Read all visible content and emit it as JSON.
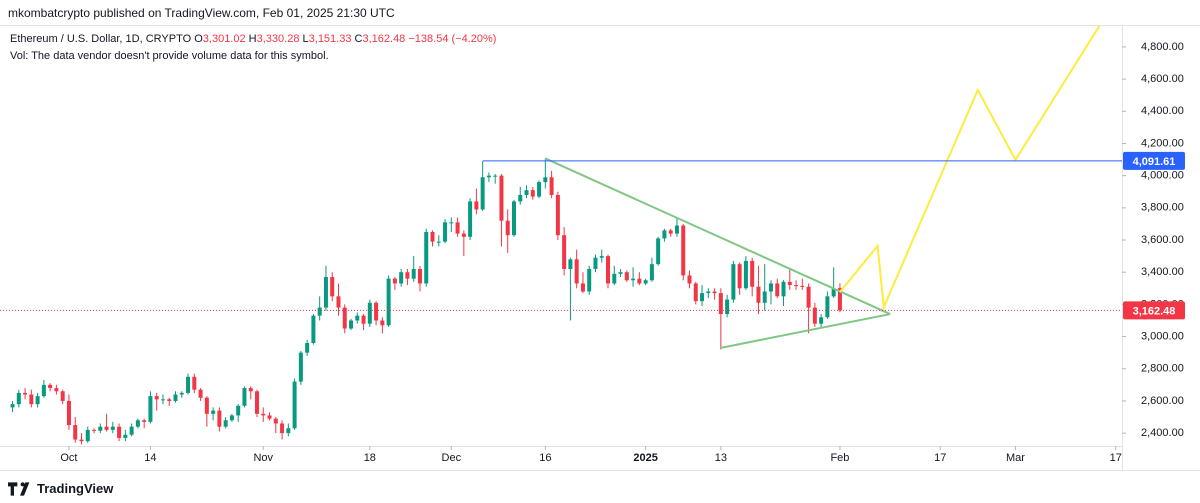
{
  "header": {
    "published": "mkombatcrypto published on TradingView.com, Feb 01, 2025 21:30 UTC"
  },
  "footer": {
    "brand": "TradingView"
  },
  "chart_data": {
    "type": "candlestick",
    "legend": {
      "symbol": "Ethereum / U.S. Dollar, 1D, CRYPTO",
      "ohlc": [
        {
          "key": "O",
          "value": "3,301.02"
        },
        {
          "key": "H",
          "value": "3,330.28"
        },
        {
          "key": "L",
          "value": "3,151.33"
        },
        {
          "key": "C",
          "value": "3,162.48"
        }
      ],
      "change": "−138.54 (−4.20%)"
    },
    "note": "Vol: The data vendor doesn't provide volume data for this symbol.",
    "up_color": "#089981",
    "down_color": "#f23645",
    "xlim": [
      "2024-09-20",
      "2025-03-18"
    ],
    "xticks": [
      {
        "value": "2024-10-01",
        "label": "Oct"
      },
      {
        "value": "2024-10-14",
        "label": "14"
      },
      {
        "value": "2024-11-01",
        "label": "Nov"
      },
      {
        "value": "2024-11-18",
        "label": "18"
      },
      {
        "value": "2024-12-01",
        "label": "Dec"
      },
      {
        "value": "2024-12-16",
        "label": "16"
      },
      {
        "value": "2025-01-01",
        "label": "2025"
      },
      {
        "value": "2025-01-13",
        "label": "13"
      },
      {
        "value": "2025-02-01",
        "label": "Feb"
      },
      {
        "value": "2025-02-17",
        "label": "17"
      },
      {
        "value": "2025-03-01",
        "label": "Mar"
      },
      {
        "value": "2025-03-17",
        "label": "17"
      }
    ],
    "ylim": [
      2320,
      4930
    ],
    "yticks": [
      {
        "value": 2400,
        "label": "2,400.00"
      },
      {
        "value": 2600,
        "label": "2,600.00"
      },
      {
        "value": 2800,
        "label": "2,800.00"
      },
      {
        "value": 3000,
        "label": "3,000.00"
      },
      {
        "value": 3200,
        "label": "3,200.00"
      },
      {
        "value": 3400,
        "label": "3,400.00"
      },
      {
        "value": 3600,
        "label": "3,600.00"
      },
      {
        "value": 3800,
        "label": "3,800.00"
      },
      {
        "value": 4000,
        "label": "4,000.00"
      },
      {
        "value": 4200,
        "label": "4,200.00"
      },
      {
        "value": 4400,
        "label": "4,400.00"
      },
      {
        "value": 4600,
        "label": "4,600.00"
      },
      {
        "value": 4800,
        "label": "4,800.00"
      }
    ],
    "grid": false,
    "x": [
      "2024-09-22",
      "2024-09-23",
      "2024-09-24",
      "2024-09-25",
      "2024-09-26",
      "2024-09-27",
      "2024-09-28",
      "2024-09-29",
      "2024-09-30",
      "2024-10-01",
      "2024-10-02",
      "2024-10-03",
      "2024-10-04",
      "2024-10-05",
      "2024-10-06",
      "2024-10-07",
      "2024-10-08",
      "2024-10-09",
      "2024-10-10",
      "2024-10-11",
      "2024-10-12",
      "2024-10-13",
      "2024-10-14",
      "2024-10-15",
      "2024-10-16",
      "2024-10-17",
      "2024-10-18",
      "2024-10-19",
      "2024-10-20",
      "2024-10-21",
      "2024-10-22",
      "2024-10-23",
      "2024-10-24",
      "2024-10-25",
      "2024-10-26",
      "2024-10-27",
      "2024-10-28",
      "2024-10-29",
      "2024-10-30",
      "2024-10-31",
      "2024-11-01",
      "2024-11-02",
      "2024-11-03",
      "2024-11-04",
      "2024-11-05",
      "2024-11-06",
      "2024-11-07",
      "2024-11-08",
      "2024-11-09",
      "2024-11-10",
      "2024-11-11",
      "2024-11-12",
      "2024-11-13",
      "2024-11-14",
      "2024-11-15",
      "2024-11-16",
      "2024-11-17",
      "2024-11-18",
      "2024-11-19",
      "2024-11-20",
      "2024-11-21",
      "2024-11-22",
      "2024-11-23",
      "2024-11-24",
      "2024-11-25",
      "2024-11-26",
      "2024-11-27",
      "2024-11-28",
      "2024-11-29",
      "2024-11-30",
      "2024-12-01",
      "2024-12-02",
      "2024-12-03",
      "2024-12-04",
      "2024-12-05",
      "2024-12-06",
      "2024-12-07",
      "2024-12-08",
      "2024-12-09",
      "2024-12-10",
      "2024-12-11",
      "2024-12-12",
      "2024-12-13",
      "2024-12-14",
      "2024-12-15",
      "2024-12-16",
      "2024-12-17",
      "2024-12-18",
      "2024-12-19",
      "2024-12-20",
      "2024-12-21",
      "2024-12-22",
      "2024-12-23",
      "2024-12-24",
      "2024-12-25",
      "2024-12-26",
      "2024-12-27",
      "2024-12-28",
      "2024-12-29",
      "2024-12-30",
      "2024-12-31",
      "2025-01-01",
      "2025-01-02",
      "2025-01-03",
      "2025-01-04",
      "2025-01-05",
      "2025-01-06",
      "2025-01-07",
      "2025-01-08",
      "2025-01-09",
      "2025-01-10",
      "2025-01-11",
      "2025-01-12",
      "2025-01-13",
      "2025-01-14",
      "2025-01-15",
      "2025-01-16",
      "2025-01-17",
      "2025-01-18",
      "2025-01-19",
      "2025-01-20",
      "2025-01-21",
      "2025-01-22",
      "2025-01-23",
      "2025-01-24",
      "2025-01-25",
      "2025-01-26",
      "2025-01-27",
      "2025-01-28",
      "2025-01-29",
      "2025-01-30",
      "2025-01-31",
      "2025-02-01"
    ],
    "ohlc": [
      [
        2560,
        2600,
        2530,
        2580
      ],
      [
        2580,
        2670,
        2560,
        2650
      ],
      [
        2650,
        2680,
        2610,
        2640
      ],
      [
        2640,
        2670,
        2560,
        2580
      ],
      [
        2580,
        2650,
        2560,
        2630
      ],
      [
        2630,
        2730,
        2620,
        2700
      ],
      [
        2700,
        2710,
        2660,
        2680
      ],
      [
        2680,
        2700,
        2640,
        2660
      ],
      [
        2660,
        2670,
        2580,
        2600
      ],
      [
        2600,
        2640,
        2420,
        2450
      ],
      [
        2450,
        2500,
        2340,
        2360
      ],
      [
        2360,
        2400,
        2330,
        2350
      ],
      [
        2350,
        2440,
        2340,
        2420
      ],
      [
        2420,
        2430,
        2400,
        2415
      ],
      [
        2415,
        2460,
        2400,
        2440
      ],
      [
        2440,
        2520,
        2410,
        2420
      ],
      [
        2420,
        2470,
        2400,
        2440
      ],
      [
        2440,
        2460,
        2350,
        2370
      ],
      [
        2370,
        2420,
        2350,
        2390
      ],
      [
        2390,
        2460,
        2380,
        2440
      ],
      [
        2440,
        2490,
        2430,
        2480
      ],
      [
        2480,
        2490,
        2430,
        2470
      ],
      [
        2470,
        2660,
        2460,
        2630
      ],
      [
        2630,
        2650,
        2540,
        2610
      ],
      [
        2610,
        2640,
        2580,
        2610
      ],
      [
        2610,
        2620,
        2570,
        2600
      ],
      [
        2600,
        2660,
        2590,
        2640
      ],
      [
        2640,
        2660,
        2620,
        2650
      ],
      [
        2650,
        2770,
        2640,
        2750
      ],
      [
        2750,
        2770,
        2650,
        2670
      ],
      [
        2670,
        2680,
        2600,
        2620
      ],
      [
        2620,
        2630,
        2440,
        2520
      ],
      [
        2520,
        2560,
        2480,
        2540
      ],
      [
        2540,
        2560,
        2410,
        2440
      ],
      [
        2440,
        2500,
        2430,
        2480
      ],
      [
        2480,
        2520,
        2470,
        2510
      ],
      [
        2510,
        2580,
        2470,
        2570
      ],
      [
        2570,
        2690,
        2560,
        2680
      ],
      [
        2680,
        2690,
        2610,
        2660
      ],
      [
        2660,
        2670,
        2500,
        2520
      ],
      [
        2520,
        2560,
        2470,
        2510
      ],
      [
        2510,
        2530,
        2480,
        2490
      ],
      [
        2490,
        2500,
        2400,
        2460
      ],
      [
        2460,
        2480,
        2360,
        2400
      ],
      [
        2400,
        2460,
        2380,
        2430
      ],
      [
        2430,
        2740,
        2420,
        2720
      ],
      [
        2720,
        2910,
        2700,
        2900
      ],
      [
        2900,
        2980,
        2880,
        2960
      ],
      [
        2960,
        3140,
        2950,
        3130
      ],
      [
        3130,
        3250,
        3100,
        3180
      ],
      [
        3180,
        3440,
        3160,
        3370
      ],
      [
        3370,
        3400,
        3220,
        3250
      ],
      [
        3250,
        3330,
        3130,
        3180
      ],
      [
        3180,
        3200,
        3020,
        3050
      ],
      [
        3050,
        3110,
        3040,
        3100
      ],
      [
        3100,
        3150,
        3080,
        3130
      ],
      [
        3130,
        3140,
        3040,
        3080
      ],
      [
        3080,
        3230,
        3060,
        3210
      ],
      [
        3210,
        3220,
        3070,
        3100
      ],
      [
        3100,
        3120,
        3020,
        3070
      ],
      [
        3070,
        3380,
        3060,
        3360
      ],
      [
        3360,
        3370,
        3290,
        3330
      ],
      [
        3330,
        3420,
        3310,
        3400
      ],
      [
        3400,
        3420,
        3320,
        3360
      ],
      [
        3360,
        3500,
        3340,
        3420
      ],
      [
        3420,
        3440,
        3280,
        3330
      ],
      [
        3330,
        3670,
        3310,
        3650
      ],
      [
        3650,
        3660,
        3560,
        3590
      ],
      [
        3590,
        3630,
        3560,
        3590
      ],
      [
        3590,
        3730,
        3580,
        3710
      ],
      [
        3710,
        3740,
        3650,
        3710
      ],
      [
        3710,
        3740,
        3620,
        3640
      ],
      [
        3640,
        3660,
        3500,
        3620
      ],
      [
        3620,
        3860,
        3600,
        3840
      ],
      [
        3840,
        3920,
        3760,
        3790
      ],
      [
        3790,
        4090,
        3780,
        3990
      ],
      [
        3990,
        4020,
        3960,
        4000
      ],
      [
        4000,
        4010,
        3950,
        4000
      ],
      [
        4000,
        4010,
        3560,
        3720
      ],
      [
        3720,
        3790,
        3520,
        3630
      ],
      [
        3630,
        3850,
        3620,
        3840
      ],
      [
        3840,
        3930,
        3820,
        3880
      ],
      [
        3880,
        3940,
        3860,
        3910
      ],
      [
        3910,
        3930,
        3850,
        3870
      ],
      [
        3870,
        3970,
        3860,
        3960
      ],
      [
        3960,
        4107,
        3920,
        3990
      ],
      [
        3990,
        4030,
        3860,
        3880
      ],
      [
        3880,
        3900,
        3600,
        3630
      ],
      [
        3630,
        3680,
        3380,
        3420
      ],
      [
        3420,
        3490,
        3100,
        3480
      ],
      [
        3480,
        3540,
        3300,
        3330
      ],
      [
        3330,
        3400,
        3270,
        3280
      ],
      [
        3280,
        3440,
        3260,
        3420
      ],
      [
        3420,
        3510,
        3400,
        3490
      ],
      [
        3490,
        3540,
        3460,
        3500
      ],
      [
        3500,
        3510,
        3300,
        3330
      ],
      [
        3330,
        3440,
        3320,
        3390
      ],
      [
        3390,
        3420,
        3370,
        3400
      ],
      [
        3400,
        3410,
        3340,
        3350
      ],
      [
        3350,
        3430,
        3310,
        3360
      ],
      [
        3360,
        3400,
        3320,
        3330
      ],
      [
        3330,
        3360,
        3320,
        3350
      ],
      [
        3350,
        3490,
        3340,
        3450
      ],
      [
        3450,
        3620,
        3440,
        3610
      ],
      [
        3610,
        3670,
        3590,
        3660
      ],
      [
        3660,
        3670,
        3620,
        3640
      ],
      [
        3640,
        3740,
        3620,
        3690
      ],
      [
        3690,
        3700,
        3350,
        3380
      ],
      [
        3380,
        3410,
        3300,
        3330
      ],
      [
        3330,
        3340,
        3200,
        3220
      ],
      [
        3220,
        3320,
        3190,
        3270
      ],
      [
        3270,
        3300,
        3240,
        3280
      ],
      [
        3280,
        3300,
        3230,
        3270
      ],
      [
        3270,
        3300,
        2920,
        3140
      ],
      [
        3140,
        3260,
        3120,
        3230
      ],
      [
        3230,
        3470,
        3210,
        3450
      ],
      [
        3450,
        3460,
        3260,
        3300
      ],
      [
        3300,
        3500,
        3290,
        3470
      ],
      [
        3470,
        3490,
        3250,
        3310
      ],
      [
        3310,
        3440,
        3140,
        3210
      ],
      [
        3210,
        3450,
        3160,
        3280
      ],
      [
        3280,
        3350,
        3200,
        3330
      ],
      [
        3330,
        3360,
        3240,
        3250
      ],
      [
        3250,
        3350,
        3190,
        3340
      ],
      [
        3340,
        3420,
        3290,
        3320
      ],
      [
        3320,
        3350,
        3290,
        3315
      ],
      [
        3315,
        3360,
        3290,
        3310
      ],
      [
        3310,
        3330,
        3020,
        3180
      ],
      [
        3180,
        3210,
        3060,
        3080
      ],
      [
        3080,
        3140,
        3050,
        3120
      ],
      [
        3120,
        3280,
        3110,
        3250
      ],
      [
        3250,
        3430,
        3240,
        3300
      ],
      [
        3301.02,
        3330.28,
        3151.33,
        3162.48
      ]
    ],
    "price_lines": [
      {
        "value": 4091.61,
        "label": "4,091.61",
        "color": "#2962ff",
        "start": "2024-12-06",
        "style": "solid"
      },
      {
        "value": 3162.48,
        "label": "3,162.48",
        "color": "#f23645",
        "style": "dotted"
      }
    ],
    "drawings": [
      {
        "color": "#81c784",
        "points": [
          {
            "x": "2024-12-16",
            "y": 4107
          },
          {
            "x": "2025-02-09",
            "y": 3140
          }
        ]
      },
      {
        "color": "#81c784",
        "points": [
          {
            "x": "2025-01-13",
            "y": 2930
          },
          {
            "x": "2025-02-09",
            "y": 3140
          }
        ]
      },
      {
        "color": "#ffeb3b",
        "points": [
          {
            "x": "2025-02-01",
            "y": 3277
          },
          {
            "x": "2025-02-07",
            "y": 3563
          },
          {
            "x": "2025-02-08",
            "y": 3183
          },
          {
            "x": "2025-02-23",
            "y": 4533
          },
          {
            "x": "2025-03-01",
            "y": 4098
          },
          {
            "x": "2025-03-15",
            "y": 4968
          }
        ]
      }
    ]
  }
}
